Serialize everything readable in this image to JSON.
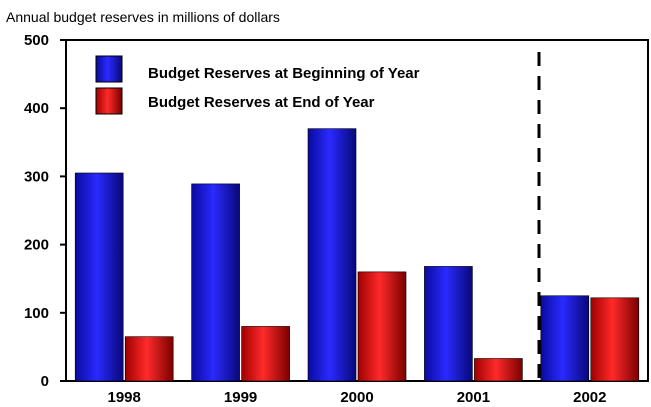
{
  "chart_data": {
    "type": "bar",
    "subtitle": "Annual budget reserves in millions of dollars",
    "categories": [
      "1998",
      "1999",
      "2000",
      "2001",
      "2002"
    ],
    "series": [
      {
        "name": "Budget Reserves at Beginning of Year",
        "color": "#1010e8",
        "values": [
          305,
          289,
          370,
          168,
          125
        ]
      },
      {
        "name": "Budget Reserves at End of Year",
        "color": "#e01010",
        "values": [
          65,
          80,
          160,
          33,
          122
        ]
      }
    ],
    "ylim": [
      0,
      500
    ],
    "yticks": [
      0,
      100,
      200,
      300,
      400,
      500
    ],
    "grid": false,
    "legend": "top-left",
    "divider": "dashed vertical line between 2001 and 2002"
  }
}
